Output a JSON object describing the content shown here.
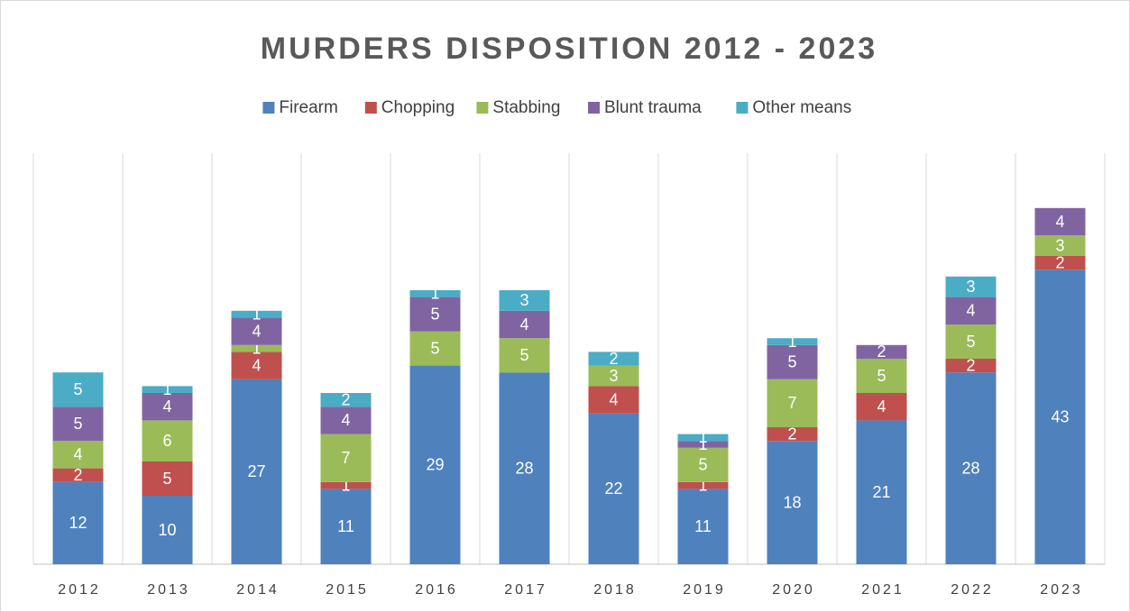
{
  "chart_data": {
    "type": "stacked_bar",
    "title": "MURDERS DISPOSITION 2012 - 2023",
    "categories": [
      "2012",
      "2013",
      "2014",
      "2015",
      "2016",
      "2017",
      "2018",
      "2019",
      "2020",
      "2021",
      "2022",
      "2023"
    ],
    "series": [
      {
        "name": "Firearm",
        "color": "#4f81bd",
        "values": [
          12,
          10,
          27,
          11,
          29,
          28,
          22,
          11,
          18,
          21,
          28,
          43
        ]
      },
      {
        "name": "Chopping",
        "color": "#c0504d",
        "values": [
          2,
          5,
          4,
          1,
          null,
          null,
          4,
          1,
          2,
          4,
          2,
          2
        ]
      },
      {
        "name": "Stabbing",
        "color": "#9bbb59",
        "values": [
          4,
          6,
          1,
          7,
          5,
          5,
          3,
          5,
          7,
          5,
          5,
          3
        ]
      },
      {
        "name": "Blunt trauma",
        "color": "#8064a2",
        "values": [
          5,
          4,
          4,
          4,
          5,
          4,
          null,
          1,
          5,
          2,
          4,
          4
        ]
      },
      {
        "name": "Other means",
        "color": "#4bacc6",
        "values": [
          5,
          1,
          1,
          2,
          1,
          3,
          2,
          1,
          1,
          null,
          3,
          null
        ]
      }
    ],
    "ylim": [
      0,
      60
    ],
    "legend": "top"
  }
}
